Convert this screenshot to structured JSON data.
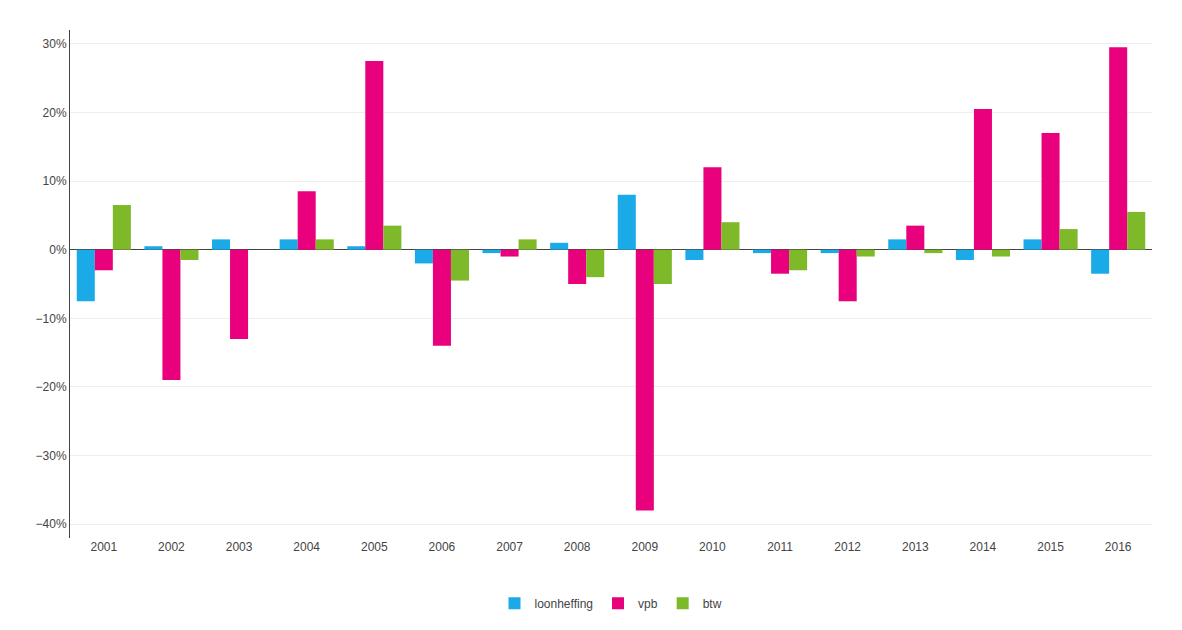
{
  "chart_data": {
    "type": "bar",
    "categories": [
      "2001",
      "2002",
      "2003",
      "2004",
      "2005",
      "2006",
      "2007",
      "2008",
      "2009",
      "2010",
      "2011",
      "2012",
      "2013",
      "2014",
      "2015",
      "2016"
    ],
    "series": [
      {
        "name": "loonheffing",
        "color": "#1AAAE8",
        "values": [
          -7.5,
          0.5,
          1.5,
          1.5,
          0.5,
          -2.0,
          -0.5,
          1.0,
          8.0,
          -1.5,
          -0.5,
          -0.5,
          1.5,
          -1.5,
          1.5,
          -3.5
        ]
      },
      {
        "name": "vpb",
        "color": "#E8007D",
        "values": [
          -3.0,
          -19.0,
          -13.0,
          8.5,
          27.5,
          -14.0,
          -1.0,
          -5.0,
          -38.0,
          12.0,
          -3.5,
          -7.5,
          3.5,
          20.5,
          17.0,
          29.5
        ]
      },
      {
        "name": "btw",
        "color": "#7DB928",
        "values": [
          6.5,
          -1.5,
          0.0,
          1.5,
          3.5,
          -4.5,
          1.5,
          -4.0,
          -5.0,
          4.0,
          -3.0,
          -1.0,
          -0.5,
          -1.0,
          3.0,
          5.5
        ]
      }
    ],
    "ylim": [
      -42,
      32
    ],
    "yticks": [
      {
        "value": -40,
        "label": "−40%"
      },
      {
        "value": -30,
        "label": "−30%"
      },
      {
        "value": -20,
        "label": "−20%"
      },
      {
        "value": -10,
        "label": "−10%"
      },
      {
        "value": 0,
        "label": "0%"
      },
      {
        "value": 10,
        "label": "10%"
      },
      {
        "value": 20,
        "label": "20%"
      },
      {
        "value": 30,
        "label": "30%"
      }
    ],
    "grid": true,
    "legend": "bottom"
  }
}
